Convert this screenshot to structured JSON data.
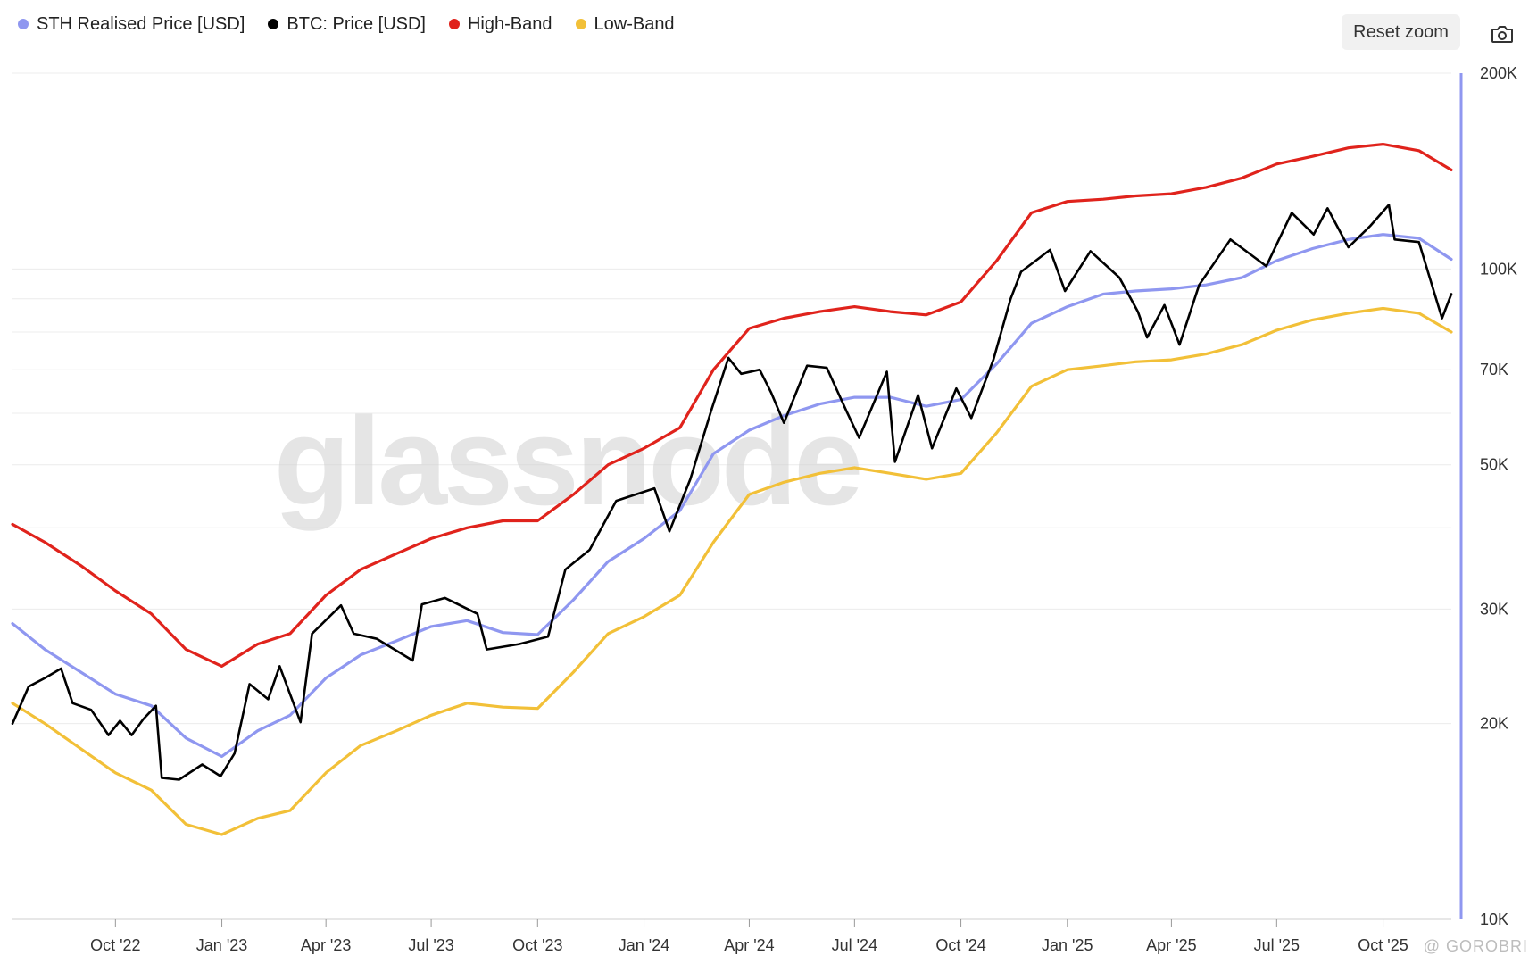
{
  "toolbar": {
    "reset_label": "Reset zoom",
    "camera_icon": "camera-icon"
  },
  "watermark": {
    "logo": "glassnode",
    "credit": "@ GOROBRI"
  },
  "colors": {
    "sth": "#8f97f0",
    "btc": "#000000",
    "high": "#e0231c",
    "low": "#f2c038",
    "axis_line": "#8f97f0",
    "grid": "#ececec"
  },
  "chart_data": {
    "type": "line",
    "y_scale": "log",
    "ylim": [
      10000,
      200000
    ],
    "y_ticks": [
      {
        "value": 200000,
        "label": "200K"
      },
      {
        "value": 100000,
        "label": "100K"
      },
      {
        "value": 70000,
        "label": "70K"
      },
      {
        "value": 50000,
        "label": "50K"
      },
      {
        "value": 30000,
        "label": "30K"
      },
      {
        "value": 20000,
        "label": "20K"
      },
      {
        "value": 10000,
        "label": "10K"
      }
    ],
    "y_gridlines": [
      200000,
      100000,
      90000,
      80000,
      70000,
      60000,
      50000,
      40000,
      30000,
      20000,
      10000
    ],
    "xlim": [
      "2022-07-04",
      "2025-11-29"
    ],
    "x_ticks": [
      {
        "date": "2022-10-01",
        "label": "Oct '22"
      },
      {
        "date": "2023-01-01",
        "label": "Jan '23"
      },
      {
        "date": "2023-04-01",
        "label": "Apr '23"
      },
      {
        "date": "2023-07-01",
        "label": "Jul '23"
      },
      {
        "date": "2023-10-01",
        "label": "Oct '23"
      },
      {
        "date": "2024-01-01",
        "label": "Jan '24"
      },
      {
        "date": "2024-04-01",
        "label": "Apr '24"
      },
      {
        "date": "2024-07-01",
        "label": "Jul '24"
      },
      {
        "date": "2024-10-01",
        "label": "Oct '24"
      },
      {
        "date": "2025-01-01",
        "label": "Jan '25"
      },
      {
        "date": "2025-04-01",
        "label": "Apr '25"
      },
      {
        "date": "2025-07-01",
        "label": "Jul '25"
      },
      {
        "date": "2025-10-01",
        "label": "Oct '25"
      }
    ],
    "series": [
      {
        "name": "STH Realised Price [USD]",
        "color": "#8f97f0",
        "points": [
          [
            "2022-07-04",
            28500
          ],
          [
            "2022-08-01",
            26000
          ],
          [
            "2022-09-01",
            24000
          ],
          [
            "2022-10-01",
            22200
          ],
          [
            "2022-11-01",
            21300
          ],
          [
            "2022-12-01",
            19000
          ],
          [
            "2023-01-01",
            17800
          ],
          [
            "2023-02-01",
            19500
          ],
          [
            "2023-03-01",
            20600
          ],
          [
            "2023-04-01",
            23500
          ],
          [
            "2023-05-01",
            25500
          ],
          [
            "2023-06-01",
            26800
          ],
          [
            "2023-07-01",
            28200
          ],
          [
            "2023-08-01",
            28800
          ],
          [
            "2023-09-01",
            27600
          ],
          [
            "2023-10-01",
            27400
          ],
          [
            "2023-11-01",
            31000
          ],
          [
            "2023-12-01",
            35500
          ],
          [
            "2024-01-01",
            38500
          ],
          [
            "2024-02-01",
            42500
          ],
          [
            "2024-03-01",
            52000
          ],
          [
            "2024-04-01",
            56500
          ],
          [
            "2024-05-01",
            59500
          ],
          [
            "2024-06-01",
            62000
          ],
          [
            "2024-07-01",
            63500
          ],
          [
            "2024-08-01",
            63500
          ],
          [
            "2024-09-01",
            61500
          ],
          [
            "2024-10-01",
            63000
          ],
          [
            "2024-11-01",
            71500
          ],
          [
            "2024-12-01",
            82500
          ],
          [
            "2025-01-01",
            87500
          ],
          [
            "2025-02-01",
            91500
          ],
          [
            "2025-03-01",
            92500
          ],
          [
            "2025-04-01",
            93200
          ],
          [
            "2025-05-01",
            94500
          ],
          [
            "2025-06-01",
            97000
          ],
          [
            "2025-07-01",
            103000
          ],
          [
            "2025-08-01",
            107500
          ],
          [
            "2025-09-01",
            111000
          ],
          [
            "2025-10-01",
            113000
          ],
          [
            "2025-11-01",
            111500
          ],
          [
            "2025-11-29",
            103500
          ]
        ]
      },
      {
        "name": "BTC: Price [USD]",
        "color": "#000000",
        "points": [
          [
            "2022-07-04",
            20000
          ],
          [
            "2022-07-18",
            22800
          ],
          [
            "2022-08-01",
            23500
          ],
          [
            "2022-08-15",
            24300
          ],
          [
            "2022-08-25",
            21500
          ],
          [
            "2022-09-10",
            21000
          ],
          [
            "2022-09-25",
            19200
          ],
          [
            "2022-10-05",
            20200
          ],
          [
            "2022-10-15",
            19200
          ],
          [
            "2022-10-25",
            20300
          ],
          [
            "2022-11-05",
            21300
          ],
          [
            "2022-11-10",
            16500
          ],
          [
            "2022-11-25",
            16400
          ],
          [
            "2022-12-15",
            17300
          ],
          [
            "2022-12-31",
            16600
          ],
          [
            "2023-01-12",
            18000
          ],
          [
            "2023-01-25",
            23000
          ],
          [
            "2023-02-10",
            21800
          ],
          [
            "2023-02-20",
            24500
          ],
          [
            "2023-03-10",
            20100
          ],
          [
            "2023-03-20",
            27500
          ],
          [
            "2023-04-14",
            30400
          ],
          [
            "2023-04-25",
            27500
          ],
          [
            "2023-05-15",
            27000
          ],
          [
            "2023-06-15",
            25000
          ],
          [
            "2023-06-23",
            30500
          ],
          [
            "2023-07-13",
            31200
          ],
          [
            "2023-08-10",
            29500
          ],
          [
            "2023-08-18",
            26000
          ],
          [
            "2023-09-15",
            26500
          ],
          [
            "2023-10-10",
            27200
          ],
          [
            "2023-10-25",
            34500
          ],
          [
            "2023-11-15",
            37000
          ],
          [
            "2023-12-08",
            44000
          ],
          [
            "2024-01-10",
            46000
          ],
          [
            "2024-01-23",
            39500
          ],
          [
            "2024-02-10",
            47500
          ],
          [
            "2024-02-28",
            60500
          ],
          [
            "2024-03-14",
            73000
          ],
          [
            "2024-03-25",
            69000
          ],
          [
            "2024-04-10",
            70000
          ],
          [
            "2024-04-20",
            64500
          ],
          [
            "2024-05-01",
            58000
          ],
          [
            "2024-05-21",
            71000
          ],
          [
            "2024-06-07",
            70500
          ],
          [
            "2024-06-24",
            60500
          ],
          [
            "2024-07-05",
            55000
          ],
          [
            "2024-07-29",
            69500
          ],
          [
            "2024-08-05",
            50500
          ],
          [
            "2024-08-25",
            64000
          ],
          [
            "2024-09-06",
            53000
          ],
          [
            "2024-09-27",
            65500
          ],
          [
            "2024-10-10",
            59000
          ],
          [
            "2024-10-29",
            72500
          ],
          [
            "2024-11-13",
            90000
          ],
          [
            "2024-11-22",
            99000
          ],
          [
            "2024-12-17",
            107000
          ],
          [
            "2024-12-30",
            92500
          ],
          [
            "2025-01-21",
            106500
          ],
          [
            "2025-02-15",
            97000
          ],
          [
            "2025-03-03",
            86000
          ],
          [
            "2025-03-11",
            78500
          ],
          [
            "2025-03-26",
            88000
          ],
          [
            "2025-04-08",
            76500
          ],
          [
            "2025-04-25",
            94500
          ],
          [
            "2025-05-22",
            111000
          ],
          [
            "2025-06-22",
            101000
          ],
          [
            "2025-07-14",
            122000
          ],
          [
            "2025-08-02",
            113000
          ],
          [
            "2025-08-14",
            124000
          ],
          [
            "2025-09-01",
            108000
          ],
          [
            "2025-09-20",
            116500
          ],
          [
            "2025-10-06",
            125500
          ],
          [
            "2025-10-11",
            111000
          ],
          [
            "2025-11-01",
            110000
          ],
          [
            "2025-11-21",
            84000
          ],
          [
            "2025-11-29",
            91500
          ]
        ]
      },
      {
        "name": "High-Band",
        "color": "#e0231c",
        "points": [
          [
            "2022-07-04",
            40500
          ],
          [
            "2022-08-01",
            38000
          ],
          [
            "2022-09-01",
            35000
          ],
          [
            "2022-10-01",
            32000
          ],
          [
            "2022-11-01",
            29500
          ],
          [
            "2022-12-01",
            26000
          ],
          [
            "2023-01-01",
            24500
          ],
          [
            "2023-02-01",
            26500
          ],
          [
            "2023-03-01",
            27500
          ],
          [
            "2023-04-01",
            31500
          ],
          [
            "2023-05-01",
            34500
          ],
          [
            "2023-06-01",
            36500
          ],
          [
            "2023-07-01",
            38500
          ],
          [
            "2023-08-01",
            40000
          ],
          [
            "2023-09-01",
            41000
          ],
          [
            "2023-10-01",
            41000
          ],
          [
            "2023-11-01",
            45000
          ],
          [
            "2023-12-01",
            50000
          ],
          [
            "2024-01-01",
            53000
          ],
          [
            "2024-02-01",
            57000
          ],
          [
            "2024-03-01",
            70000
          ],
          [
            "2024-04-01",
            81000
          ],
          [
            "2024-05-01",
            84000
          ],
          [
            "2024-06-01",
            86000
          ],
          [
            "2024-07-01",
            87500
          ],
          [
            "2024-08-01",
            86000
          ],
          [
            "2024-09-01",
            85000
          ],
          [
            "2024-10-01",
            89000
          ],
          [
            "2024-11-01",
            103000
          ],
          [
            "2024-12-01",
            122000
          ],
          [
            "2025-01-01",
            127000
          ],
          [
            "2025-02-01",
            128000
          ],
          [
            "2025-03-01",
            129500
          ],
          [
            "2025-04-01",
            130500
          ],
          [
            "2025-05-01",
            133500
          ],
          [
            "2025-06-01",
            138000
          ],
          [
            "2025-07-01",
            145000
          ],
          [
            "2025-08-01",
            149000
          ],
          [
            "2025-09-01",
            153500
          ],
          [
            "2025-10-01",
            155500
          ],
          [
            "2025-11-01",
            152000
          ],
          [
            "2025-11-29",
            142000
          ]
        ]
      },
      {
        "name": "Low-Band",
        "color": "#f2c038",
        "points": [
          [
            "2022-07-04",
            21500
          ],
          [
            "2022-08-01",
            20000
          ],
          [
            "2022-09-01",
            18300
          ],
          [
            "2022-10-01",
            16800
          ],
          [
            "2022-11-01",
            15800
          ],
          [
            "2022-12-01",
            14000
          ],
          [
            "2023-01-01",
            13500
          ],
          [
            "2023-02-01",
            14300
          ],
          [
            "2023-03-01",
            14700
          ],
          [
            "2023-04-01",
            16800
          ],
          [
            "2023-05-01",
            18500
          ],
          [
            "2023-06-01",
            19500
          ],
          [
            "2023-07-01",
            20600
          ],
          [
            "2023-08-01",
            21500
          ],
          [
            "2023-09-01",
            21200
          ],
          [
            "2023-10-01",
            21100
          ],
          [
            "2023-11-01",
            24000
          ],
          [
            "2023-12-01",
            27500
          ],
          [
            "2024-01-01",
            29200
          ],
          [
            "2024-02-01",
            31500
          ],
          [
            "2024-03-01",
            38000
          ],
          [
            "2024-04-01",
            45000
          ],
          [
            "2024-05-01",
            47000
          ],
          [
            "2024-06-01",
            48500
          ],
          [
            "2024-07-01",
            49500
          ],
          [
            "2024-08-01",
            48500
          ],
          [
            "2024-09-01",
            47500
          ],
          [
            "2024-10-01",
            48500
          ],
          [
            "2024-11-01",
            56000
          ],
          [
            "2024-12-01",
            66000
          ],
          [
            "2025-01-01",
            70000
          ],
          [
            "2025-02-01",
            71000
          ],
          [
            "2025-03-01",
            72000
          ],
          [
            "2025-04-01",
            72500
          ],
          [
            "2025-05-01",
            74000
          ],
          [
            "2025-06-01",
            76500
          ],
          [
            "2025-07-01",
            80500
          ],
          [
            "2025-08-01",
            83500
          ],
          [
            "2025-09-01",
            85500
          ],
          [
            "2025-10-01",
            87000
          ],
          [
            "2025-11-01",
            85500
          ],
          [
            "2025-11-29",
            80000
          ]
        ]
      }
    ]
  }
}
